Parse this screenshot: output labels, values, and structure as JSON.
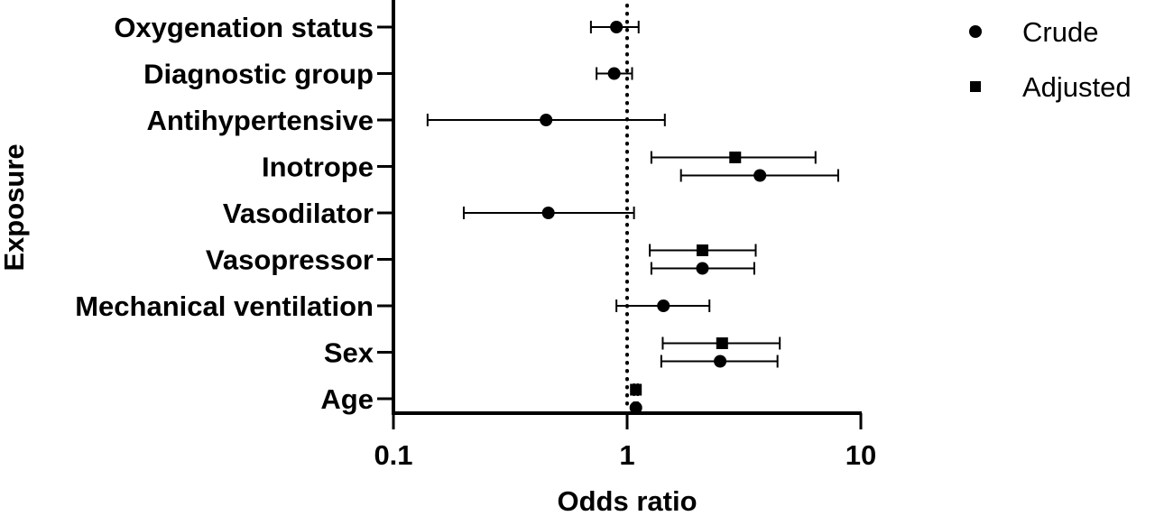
{
  "chart_data": {
    "type": "forest",
    "title": "",
    "xlabel": "Odds ratio",
    "ylabel": "Exposure",
    "xscale": "log",
    "xlim": [
      0.1,
      10
    ],
    "x_ticks": [
      {
        "value": 0.1,
        "label": "0.1"
      },
      {
        "value": 1,
        "label": "1"
      },
      {
        "value": 10,
        "label": "10"
      }
    ],
    "reference_line": 1,
    "categories": [
      "Oxygenation status",
      "Diagnostic group",
      "Antihypertensive",
      "Inotrope",
      "Vasodilator",
      "Vasopressor",
      "Mechanical ventilation",
      "Sex",
      "Age"
    ],
    "legend_position": "top-right",
    "series": [
      {
        "name": "Crude",
        "marker": "circle",
        "points": [
          {
            "category": "Oxygenation status",
            "estimate": 0.9,
            "lower": 0.7,
            "upper": 1.12
          },
          {
            "category": "Diagnostic group",
            "estimate": 0.88,
            "lower": 0.74,
            "upper": 1.05
          },
          {
            "category": "Antihypertensive",
            "estimate": 0.45,
            "lower": 0.14,
            "upper": 1.45
          },
          {
            "category": "Inotrope",
            "estimate": 3.7,
            "lower": 1.7,
            "upper": 8.0
          },
          {
            "category": "Vasodilator",
            "estimate": 0.46,
            "lower": 0.2,
            "upper": 1.07
          },
          {
            "category": "Vasopressor",
            "estimate": 2.1,
            "lower": 1.27,
            "upper": 3.5
          },
          {
            "category": "Mechanical ventilation",
            "estimate": 1.43,
            "lower": 0.9,
            "upper": 2.25
          },
          {
            "category": "Sex",
            "estimate": 2.5,
            "lower": 1.4,
            "upper": 4.4
          },
          {
            "category": "Age",
            "estimate": 1.09,
            "lower": 1.07,
            "upper": 1.11
          }
        ]
      },
      {
        "name": "Adjusted",
        "marker": "square",
        "points": [
          {
            "category": "Inotrope",
            "estimate": 2.9,
            "lower": 1.27,
            "upper": 6.4
          },
          {
            "category": "Vasopressor",
            "estimate": 2.1,
            "lower": 1.25,
            "upper": 3.55
          },
          {
            "category": "Sex",
            "estimate": 2.55,
            "lower": 1.42,
            "upper": 4.5
          },
          {
            "category": "Age",
            "estimate": 1.09,
            "lower": 1.07,
            "upper": 1.11
          }
        ]
      }
    ]
  }
}
